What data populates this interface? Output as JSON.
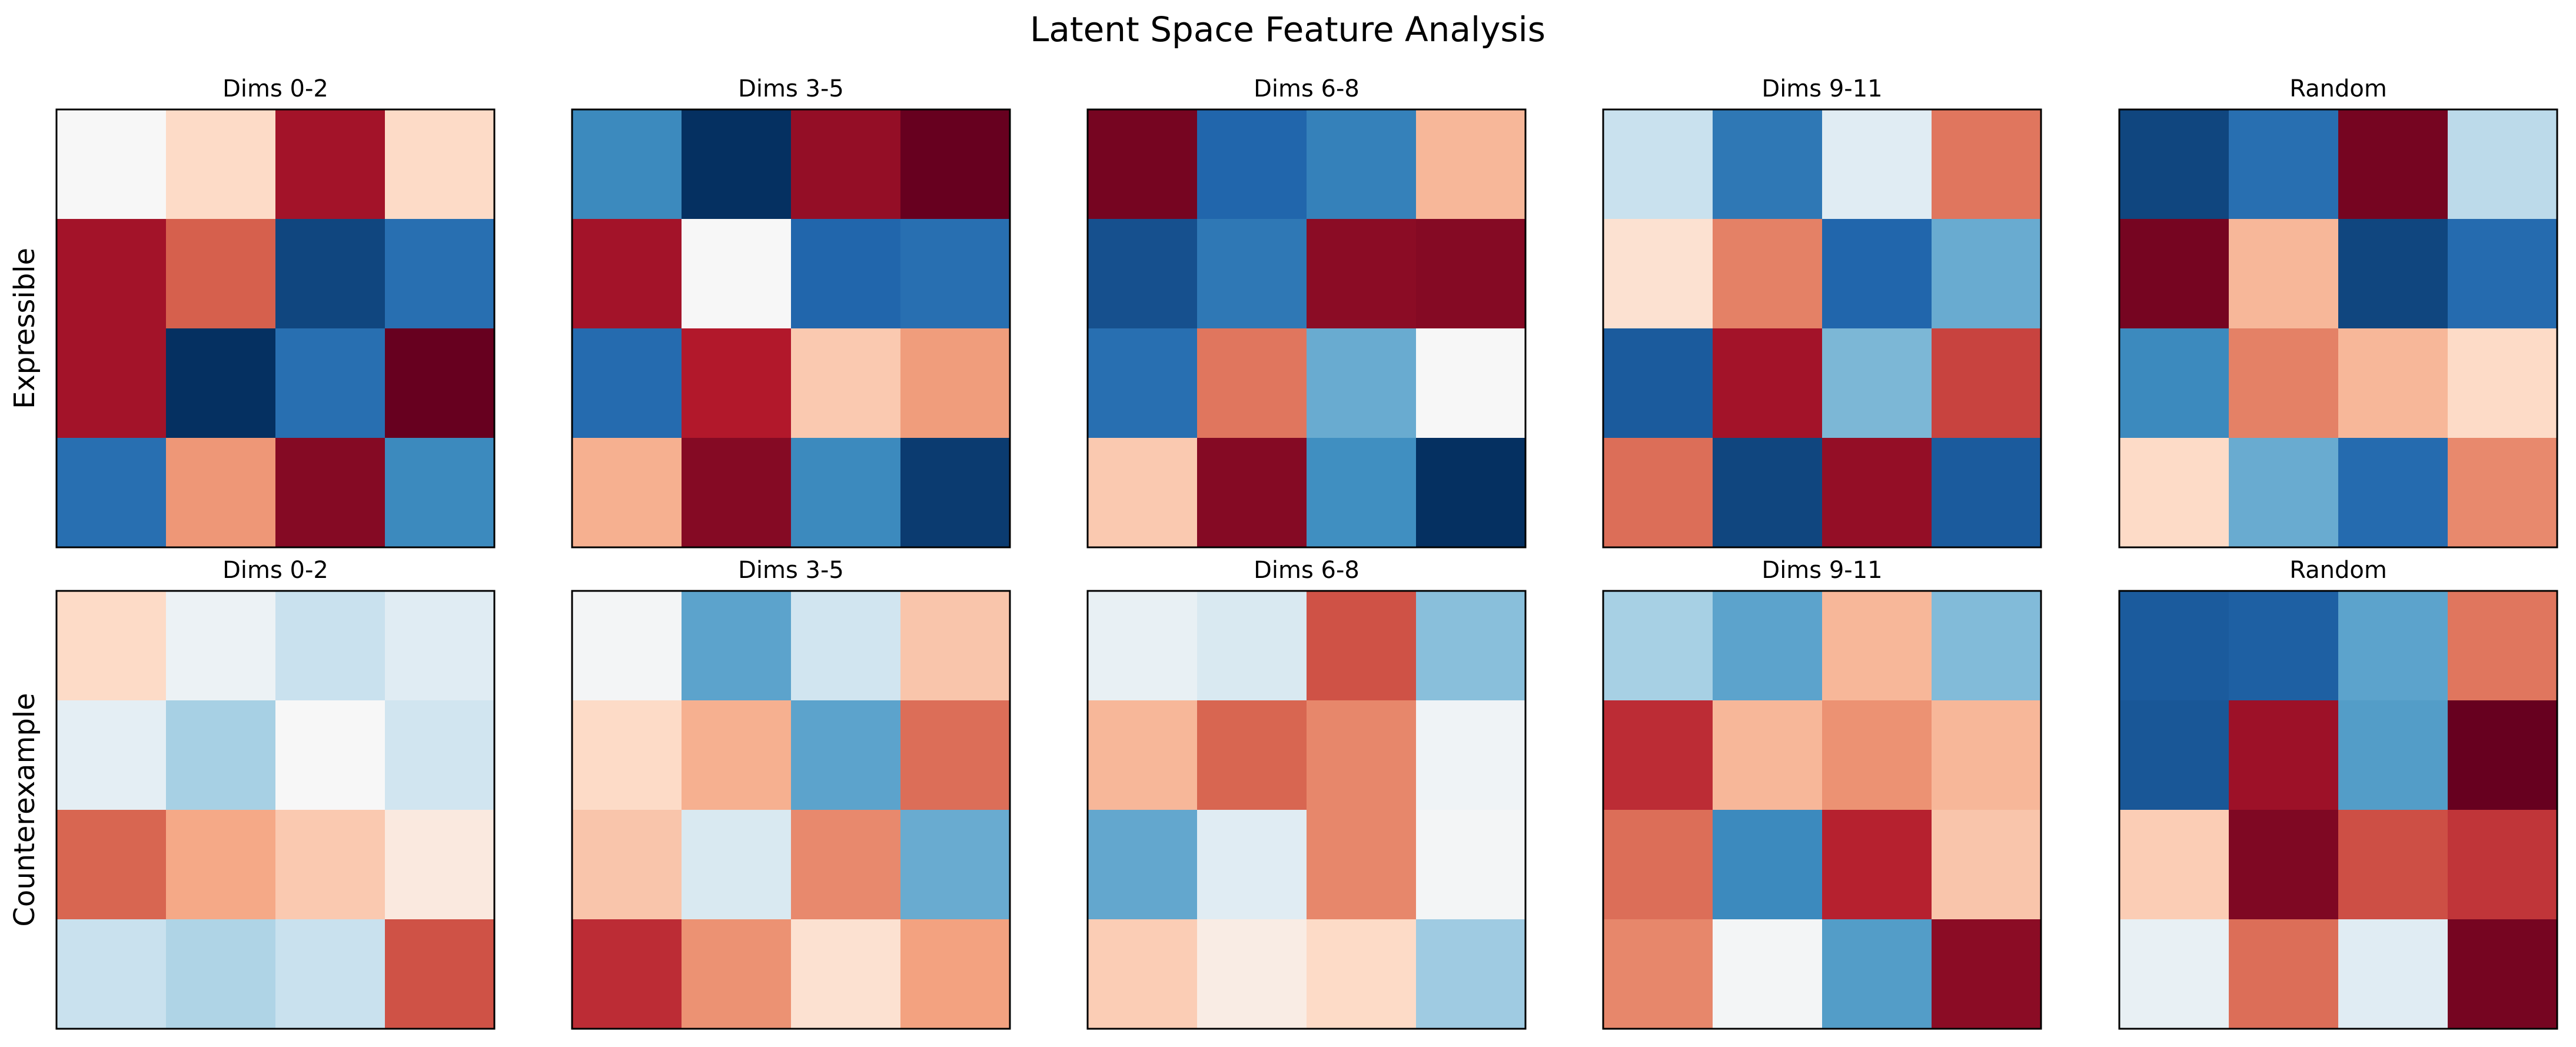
{
  "figure": {
    "title": "Latent Space Feature Analysis"
  },
  "colors": {
    "cmap": "RdBu_r",
    "frame": "#000000",
    "background": "#ffffff"
  },
  "chart_data": [
    {
      "type": "heatmap",
      "row": "Expressible",
      "title": "Dims 0-2",
      "ylabel": "Expressible",
      "values": [
        [
          0.0,
          0.1,
          0.8,
          0.1
        ],
        [
          0.8,
          0.5,
          -0.9,
          -0.7
        ],
        [
          0.8,
          -1.0,
          -0.7,
          1.0
        ],
        [
          -0.7,
          0.3,
          0.9,
          -0.55
        ]
      ]
    },
    {
      "type": "heatmap",
      "row": "Expressible",
      "title": "Dims 3-5",
      "ylabel": "",
      "values": [
        [
          -0.55,
          -1.0,
          0.85,
          1.0
        ],
        [
          0.8,
          0.0,
          -0.75,
          -0.7
        ],
        [
          -0.72,
          0.75,
          0.15,
          0.28
        ],
        [
          0.22,
          0.9,
          -0.55,
          -0.95
        ]
      ]
    },
    {
      "type": "heatmap",
      "row": "Expressible",
      "title": "Dims 6-8",
      "ylabel": "",
      "values": [
        [
          0.95,
          -0.75,
          -0.6,
          0.2
        ],
        [
          -0.85,
          -0.65,
          0.88,
          0.9
        ],
        [
          -0.7,
          0.42,
          -0.38,
          0.0
        ],
        [
          0.15,
          0.9,
          -0.52,
          -1.0
        ]
      ]
    },
    {
      "type": "heatmap",
      "row": "Expressible",
      "title": "Dims 9-11",
      "ylabel": "",
      "values": [
        [
          -0.12,
          -0.65,
          -0.06,
          0.42
        ],
        [
          0.08,
          0.38,
          -0.75,
          -0.38
        ],
        [
          -0.8,
          0.8,
          -0.32,
          0.6
        ],
        [
          0.45,
          -0.9,
          0.85,
          -0.8
        ]
      ]
    },
    {
      "type": "heatmap",
      "row": "Expressible",
      "title": "Random",
      "ylabel": "",
      "values": [
        [
          -0.9,
          -0.7,
          0.95,
          -0.15
        ],
        [
          0.95,
          0.2,
          -0.9,
          -0.72
        ],
        [
          -0.55,
          0.38,
          0.2,
          0.1
        ],
        [
          0.1,
          -0.38,
          -0.72,
          0.35
        ]
      ]
    },
    {
      "type": "heatmap",
      "row": "Counterexample",
      "title": "Dims 0-2",
      "ylabel": "Counterexample",
      "values": [
        [
          0.1,
          -0.03,
          -0.12,
          -0.06
        ],
        [
          -0.05,
          -0.2,
          0.0,
          -0.1
        ],
        [
          0.48,
          0.24,
          0.15,
          0.05
        ],
        [
          -0.12,
          -0.18,
          -0.12,
          0.55
        ]
      ]
    },
    {
      "type": "heatmap",
      "row": "Counterexample",
      "title": "Dims 3-5",
      "ylabel": "",
      "values": [
        [
          -0.01,
          -0.42,
          -0.1,
          0.16
        ],
        [
          0.1,
          0.22,
          -0.42,
          0.45
        ],
        [
          0.16,
          -0.08,
          0.35,
          -0.38
        ],
        [
          0.68,
          0.32,
          0.08,
          0.26
        ]
      ]
    },
    {
      "type": "heatmap",
      "row": "Counterexample",
      "title": "Dims 6-8",
      "ylabel": "",
      "values": [
        [
          -0.04,
          -0.08,
          0.55,
          -0.28
        ],
        [
          0.2,
          0.48,
          0.36,
          -0.02
        ],
        [
          -0.4,
          -0.06,
          0.36,
          -0.01
        ],
        [
          0.14,
          0.04,
          0.1,
          -0.22
        ]
      ]
    },
    {
      "type": "heatmap",
      "row": "Counterexample",
      "title": "Dims 9-11",
      "ylabel": "",
      "values": [
        [
          -0.2,
          -0.42,
          0.2,
          -0.3
        ],
        [
          0.68,
          0.2,
          0.32,
          0.2
        ],
        [
          0.45,
          -0.55,
          0.72,
          0.16
        ],
        [
          0.36,
          -0.01,
          -0.45,
          0.88
        ]
      ]
    },
    {
      "type": "heatmap",
      "row": "Counterexample",
      "title": "Random",
      "ylabel": "",
      "values": [
        [
          -0.8,
          -0.78,
          -0.42,
          0.42
        ],
        [
          -0.82,
          0.82,
          -0.45,
          1.0
        ],
        [
          0.14,
          0.92,
          0.56,
          0.65
        ],
        [
          -0.04,
          0.45,
          -0.06,
          0.95
        ]
      ]
    }
  ]
}
